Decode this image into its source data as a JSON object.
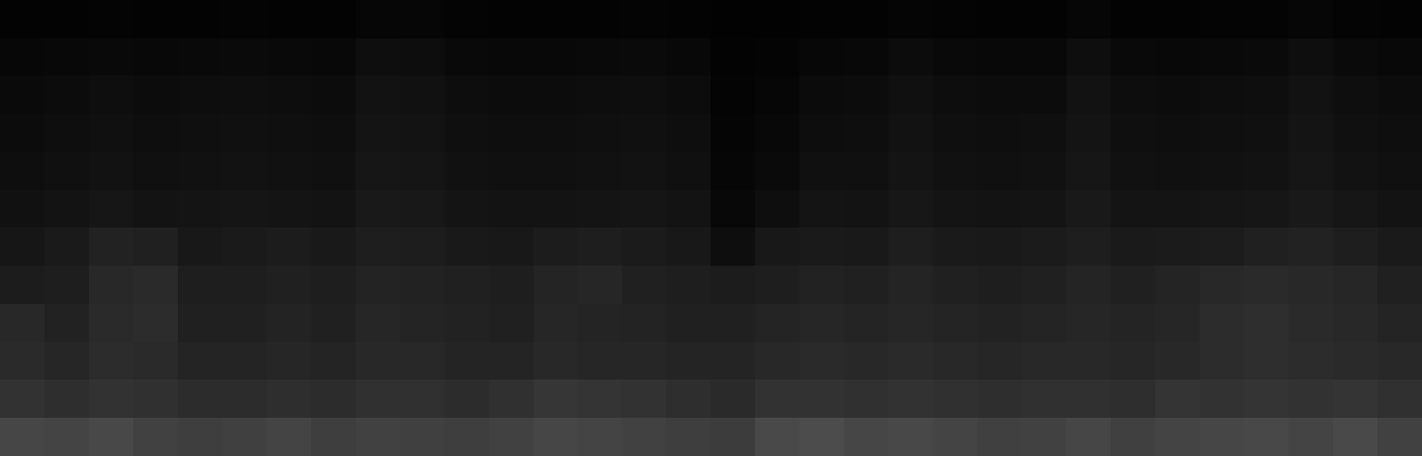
{
  "chart_data": {
    "type": "heatmap",
    "color": "gray",
    "tick_labels": false,
    "grid": false,
    "color_range": [
      0,
      255
    ],
    "cells": [
      [
        3,
        3,
        4,
        3,
        3,
        4,
        3,
        3,
        6,
        6,
        4,
        3,
        3,
        3,
        4,
        3,
        2,
        2,
        3,
        3,
        5,
        4,
        3,
        3,
        6,
        3,
        3,
        4,
        4,
        6,
        4,
        3
      ],
      [
        7,
        8,
        9,
        8,
        9,
        10,
        9,
        8,
        14,
        13,
        9,
        8,
        8,
        9,
        10,
        8,
        3,
        4,
        7,
        8,
        12,
        9,
        8,
        8,
        14,
        9,
        8,
        9,
        10,
        14,
        10,
        8
      ],
      [
        10,
        12,
        14,
        12,
        13,
        14,
        13,
        12,
        18,
        17,
        13,
        12,
        12,
        13,
        14,
        12,
        4,
        6,
        11,
        12,
        16,
        13,
        12,
        12,
        18,
        13,
        12,
        13,
        14,
        18,
        14,
        12
      ],
      [
        12,
        14,
        16,
        14,
        15,
        16,
        15,
        14,
        20,
        19,
        15,
        14,
        14,
        15,
        16,
        14,
        5,
        8,
        13,
        14,
        18,
        15,
        14,
        15,
        20,
        15,
        14,
        15,
        16,
        20,
        16,
        14
      ],
      [
        14,
        16,
        18,
        16,
        17,
        18,
        17,
        16,
        22,
        21,
        17,
        16,
        16,
        17,
        18,
        16,
        6,
        10,
        16,
        16,
        20,
        17,
        16,
        17,
        22,
        17,
        16,
        17,
        18,
        22,
        18,
        16
      ],
      [
        17,
        19,
        22,
        19,
        20,
        21,
        20,
        19,
        25,
        24,
        20,
        19,
        19,
        20,
        21,
        19,
        8,
        14,
        20,
        19,
        23,
        20,
        19,
        20,
        25,
        20,
        20,
        21,
        22,
        25,
        22,
        19
      ],
      [
        22,
        26,
        34,
        32,
        24,
        26,
        28,
        25,
        30,
        29,
        25,
        24,
        28,
        30,
        27,
        24,
        14,
        24,
        26,
        25,
        30,
        26,
        25,
        27,
        30,
        26,
        27,
        28,
        32,
        34,
        30,
        26
      ],
      [
        28,
        30,
        40,
        42,
        30,
        30,
        33,
        30,
        35,
        34,
        32,
        30,
        36,
        38,
        33,
        30,
        28,
        30,
        34,
        32,
        36,
        33,
        30,
        32,
        36,
        33,
        36,
        40,
        42,
        40,
        38,
        32
      ],
      [
        40,
        34,
        42,
        44,
        32,
        33,
        35,
        33,
        38,
        37,
        34,
        33,
        38,
        36,
        35,
        33,
        32,
        36,
        38,
        36,
        38,
        36,
        34,
        36,
        38,
        36,
        38,
        44,
        46,
        42,
        40,
        36
      ],
      [
        42,
        38,
        44,
        42,
        36,
        37,
        38,
        36,
        40,
        40,
        37,
        36,
        40,
        38,
        38,
        36,
        36,
        40,
        42,
        40,
        42,
        40,
        38,
        40,
        40,
        38,
        40,
        44,
        46,
        44,
        42,
        40
      ],
      [
        50,
        46,
        50,
        48,
        44,
        45,
        46,
        44,
        48,
        48,
        45,
        48,
        54,
        52,
        50,
        46,
        42,
        50,
        50,
        48,
        50,
        48,
        46,
        48,
        48,
        46,
        52,
        50,
        52,
        50,
        52,
        48
      ],
      [
        70,
        68,
        72,
        66,
        62,
        64,
        68,
        62,
        66,
        64,
        62,
        66,
        70,
        68,
        66,
        62,
        60,
        74,
        76,
        70,
        72,
        68,
        64,
        66,
        70,
        64,
        68,
        70,
        72,
        68,
        74,
        66
      ]
    ]
  }
}
